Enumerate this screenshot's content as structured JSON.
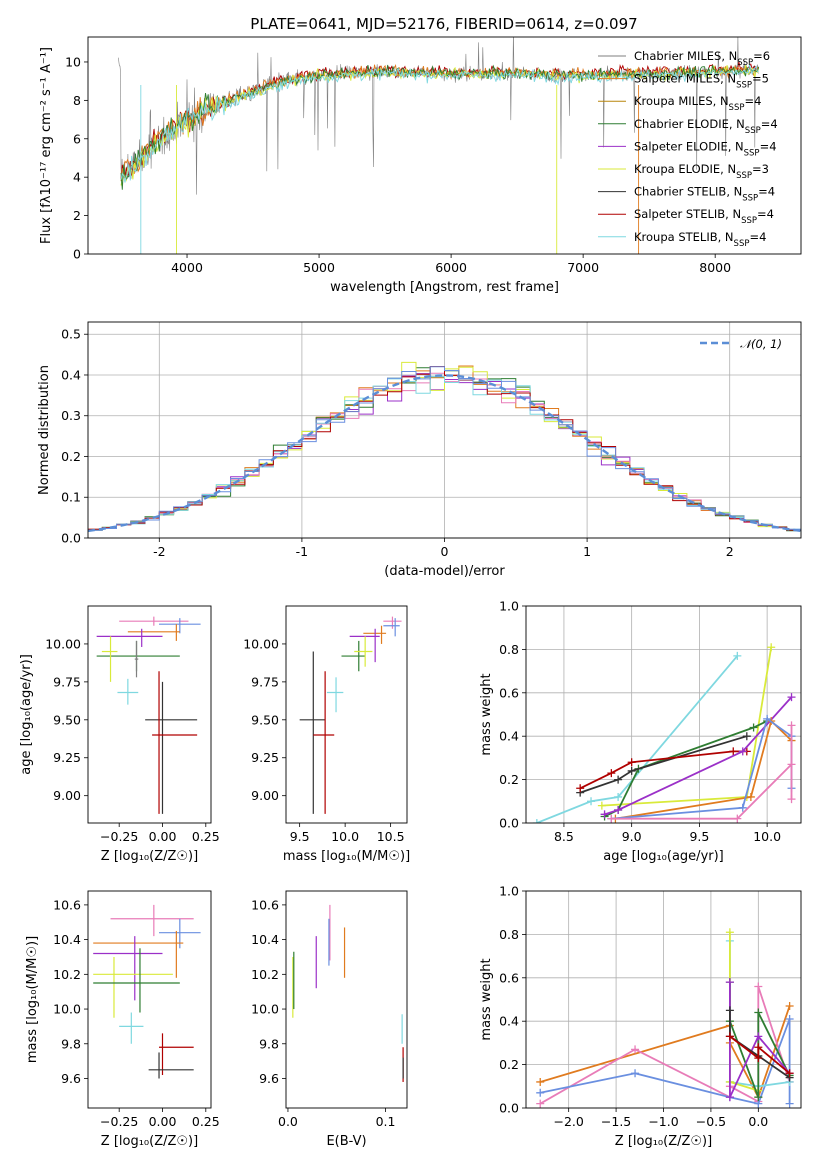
{
  "figure_title": "PLATE=0641, MJD=52176, FIBERID=0614, z=0.097",
  "colors": {
    "Chabrier MILES": "#6a8fe0",
    "Salpeter MILES": "#e07b1f",
    "Kroupa MILES": "#b8860b",
    "Chabrier ELODIE": "#2f7d32",
    "Salpeter ELODIE": "#9b30c8",
    "Kroupa ELODIE": "#d9ea3a",
    "Chabrier STELIB": "#333333",
    "Salpeter STELIB": "#b00000",
    "Kroupa STELIB": "#7fd8e0",
    "pink": "#e87cb8",
    "gray": "#7f7f7f",
    "sage": "#5f8f5f",
    "dashed": "#5b8ed6"
  },
  "chart_data": [
    {
      "type": "line",
      "id": "spectrum",
      "xlabel": "wavelength [Angstrom, rest frame]",
      "ylabel": "Flux [fλ10⁻¹⁷ erg cm⁻² s⁻¹ A⁻¹]",
      "xlim": [
        3250,
        8650
      ],
      "ylim": [
        0,
        11.3
      ],
      "xticks": [
        4000,
        5000,
        6000,
        7000,
        8000
      ],
      "yticks": [
        0,
        2,
        4,
        6,
        8,
        10
      ],
      "legend_position": "right",
      "legend": [
        {
          "base": "Chabrier MILES, N",
          "sub": "SSP",
          "tail": "=6"
        },
        {
          "base": "Salpeter MILES, N",
          "sub": "SSP",
          "tail": "=5"
        },
        {
          "base": "Kroupa MILES, N",
          "sub": "SSP",
          "tail": "=4"
        },
        {
          "base": "Chabrier ELODIE, N",
          "sub": "SSP",
          "tail": "=4"
        },
        {
          "base": "Salpeter ELODIE, N",
          "sub": "SSP",
          "tail": "=4"
        },
        {
          "base": "Kroupa ELODIE, N",
          "sub": "SSP",
          "tail": "=3"
        },
        {
          "base": "Chabrier STELIB, N",
          "sub": "SSP",
          "tail": "=4"
        },
        {
          "base": "Salpeter STELIB, N",
          "sub": "SSP",
          "tail": "=4"
        },
        {
          "base": "Kroupa STELIB, N",
          "sub": "SSP",
          "tail": "=4"
        }
      ],
      "continuum": [
        [
          3500,
          4.0
        ],
        [
          3600,
          4.6
        ],
        [
          3700,
          5.3
        ],
        [
          3800,
          6.0
        ],
        [
          3900,
          6.5
        ],
        [
          4000,
          7.0
        ],
        [
          4200,
          7.7
        ],
        [
          4400,
          8.2
        ],
        [
          4600,
          8.7
        ],
        [
          4800,
          9.1
        ],
        [
          5000,
          9.3
        ],
        [
          5200,
          9.4
        ],
        [
          5500,
          9.5
        ],
        [
          6000,
          9.4
        ],
        [
          6500,
          9.4
        ],
        [
          7000,
          9.3
        ],
        [
          7500,
          9.4
        ],
        [
          8000,
          9.5
        ],
        [
          8300,
          9.6
        ]
      ]
    },
    {
      "type": "line",
      "id": "residual-distribution",
      "xlabel": "(data-model)/error",
      "ylabel": "Normed distribution",
      "xlim": [
        -2.5,
        2.5
      ],
      "ylim": [
        0,
        0.53
      ],
      "xticks": [
        -2,
        -1,
        0,
        1,
        2
      ],
      "yticks": [
        0.0,
        0.1,
        0.2,
        0.3,
        0.4,
        0.5
      ],
      "legend": "𝒩(0, 1)",
      "legend_position": "upper right",
      "grid": true
    },
    {
      "type": "scatter",
      "id": "age-vs-Z",
      "xlabel": "Z [log₁₀(Z/Z☉)]",
      "ylabel": "age  [log₁₀(age/yr)]",
      "xlim": [
        -0.43,
        0.28
      ],
      "ylim": [
        8.82,
        10.25
      ],
      "xticks": [
        -0.25,
        0.0,
        0.25
      ],
      "yticks": [
        9.0,
        9.25,
        9.5,
        9.75,
        10.0
      ],
      "points": [
        {
          "c": "pink",
          "x": -0.05,
          "xe": [
            -0.25,
            0.15
          ],
          "y": 10.15,
          "ye": [
            10.12,
            10.18
          ]
        },
        {
          "c": "Chabrier MILES",
          "x": 0.1,
          "xe": [
            -0.02,
            0.22
          ],
          "y": 10.13,
          "ye": [
            10.07,
            10.17
          ]
        },
        {
          "c": "Salpeter MILES",
          "x": 0.08,
          "xe": [
            -0.2,
            0.1
          ],
          "y": 10.08,
          "ye": [
            10.02,
            10.13
          ]
        },
        {
          "c": "Salpeter ELODIE",
          "x": -0.12,
          "xe": [
            -0.38,
            0.0
          ],
          "y": 10.05,
          "ye": [
            9.98,
            10.1
          ]
        },
        {
          "c": "Chabrier ELODIE",
          "x": -0.15,
          "xe": [
            -0.38,
            0.1
          ],
          "y": 9.92,
          "ye": [
            9.82,
            10.02
          ]
        },
        {
          "c": "Kroupa ELODIE",
          "x": -0.3,
          "xe": [
            -0.35,
            -0.26
          ],
          "y": 9.95,
          "ye": [
            9.75,
            10.05
          ]
        },
        {
          "c": "gray",
          "x": -0.15,
          "xe": [
            -0.16,
            -0.14
          ],
          "y": 9.9,
          "ye": [
            9.78,
            10.02
          ]
        },
        {
          "c": "Kroupa STELIB",
          "x": -0.2,
          "xe": [
            -0.26,
            -0.14
          ],
          "y": 9.68,
          "ye": [
            9.6,
            9.77
          ]
        },
        {
          "c": "Chabrier STELIB",
          "x": 0.0,
          "xe": [
            -0.1,
            0.2
          ],
          "y": 9.5,
          "ye": [
            8.88,
            9.75
          ]
        },
        {
          "c": "Salpeter STELIB",
          "x": -0.02,
          "xe": [
            -0.06,
            0.2
          ],
          "y": 9.4,
          "ye": [
            8.88,
            9.82
          ]
        }
      ]
    },
    {
      "type": "scatter",
      "id": "age-vs-mass",
      "xlabel": "mass [log₁₀(M/M☉)]",
      "ylabel": "",
      "xlim": [
        9.35,
        10.68
      ],
      "ylim": [
        8.82,
        10.25
      ],
      "xticks": [
        9.5,
        10.0,
        10.5
      ],
      "yticks": [
        9.0,
        9.25,
        9.5,
        9.75,
        10.0
      ],
      "points": [
        {
          "c": "pink",
          "x": 10.52,
          "xe": [
            10.42,
            10.62
          ],
          "y": 10.15,
          "ye": [
            10.1,
            10.18
          ]
        },
        {
          "c": "Chabrier MILES",
          "x": 10.55,
          "xe": [
            10.42,
            10.6
          ],
          "y": 10.12,
          "ye": [
            10.05,
            10.17
          ]
        },
        {
          "c": "Salpeter MILES",
          "x": 10.4,
          "xe": [
            10.2,
            10.45
          ],
          "y": 10.07,
          "ye": [
            10.0,
            10.12
          ]
        },
        {
          "c": "Salpeter ELODIE",
          "x": 10.33,
          "xe": [
            10.05,
            10.38
          ],
          "y": 10.05,
          "ye": [
            9.88,
            10.1
          ]
        },
        {
          "c": "Chabrier ELODIE",
          "x": 10.15,
          "xe": [
            9.96,
            10.22
          ],
          "y": 9.92,
          "ye": [
            9.82,
            10.02
          ]
        },
        {
          "c": "Kroupa ELODIE",
          "x": 10.22,
          "xe": [
            10.1,
            10.3
          ],
          "y": 9.95,
          "ye": [
            9.85,
            10.05
          ]
        },
        {
          "c": "Kroupa STELIB",
          "x": 9.9,
          "xe": [
            9.8,
            9.98
          ],
          "y": 9.68,
          "ye": [
            9.55,
            9.78
          ]
        },
        {
          "c": "Chabrier STELIB",
          "x": 9.65,
          "xe": [
            9.5,
            9.78
          ],
          "y": 9.5,
          "ye": [
            8.88,
            9.95
          ]
        },
        {
          "c": "Salpeter STELIB",
          "x": 9.78,
          "xe": [
            9.65,
            9.88
          ],
          "y": 9.4,
          "ye": [
            8.88,
            9.82
          ]
        }
      ]
    },
    {
      "type": "line",
      "id": "mass-weight-vs-age",
      "xlabel": "age  [log₁₀(age/yr)]",
      "ylabel": "mass weight",
      "xlim": [
        8.22,
        10.25
      ],
      "ylim": [
        0.0,
        1.0
      ],
      "xticks": [
        8.5,
        9.0,
        9.5,
        10.0
      ],
      "yticks": [
        0.0,
        0.2,
        0.4,
        0.6,
        0.8,
        1.0
      ],
      "grid": true,
      "series": [
        {
          "c": "Kroupa STELIB",
          "x": [
            8.3,
            8.7,
            8.9,
            9.78
          ],
          "y": [
            0.0,
            0.1,
            0.12,
            0.77
          ]
        },
        {
          "c": "Kroupa ELODIE",
          "x": [
            8.78,
            9.85,
            10.03
          ],
          "y": [
            0.08,
            0.12,
            0.81
          ]
        },
        {
          "c": "Chabrier ELODIE",
          "x": [
            8.8,
            8.9,
            9.05,
            9.9,
            10.0
          ],
          "y": [
            0.03,
            0.06,
            0.25,
            0.44,
            0.47
          ]
        },
        {
          "c": "Chabrier STELIB",
          "x": [
            8.62,
            8.9,
            9.0,
            9.85
          ],
          "y": [
            0.14,
            0.2,
            0.24,
            0.4
          ]
        },
        {
          "c": "Salpeter STELIB",
          "x": [
            8.62,
            8.85,
            9.0,
            9.75,
            9.85
          ],
          "y": [
            0.16,
            0.23,
            0.28,
            0.33,
            0.33
          ]
        },
        {
          "c": "Salpeter ELODIE",
          "x": [
            8.8,
            8.9,
            9.82,
            10.18
          ],
          "y": [
            0.04,
            0.06,
            0.33,
            0.58
          ]
        },
        {
          "c": "Salpeter MILES",
          "x": [
            8.88,
            9.88,
            10.03,
            10.18
          ],
          "y": [
            0.02,
            0.12,
            0.47,
            0.38
          ]
        },
        {
          "c": "Chabrier MILES",
          "x": [
            8.85,
            9.82,
            10.0,
            10.18,
            10.18
          ],
          "y": [
            0.02,
            0.07,
            0.48,
            0.4,
            0.16
          ]
        },
        {
          "c": "pink",
          "x": [
            8.85,
            9.78,
            10.18,
            10.18,
            10.18
          ],
          "y": [
            0.02,
            0.02,
            0.27,
            0.45,
            0.11
          ]
        }
      ]
    },
    {
      "type": "scatter",
      "id": "mass-vs-Z",
      "xlabel": "Z [log₁₀(Z/Z☉)]",
      "ylabel": "mass [log₁₀(M/M☉)]",
      "xlim": [
        -0.43,
        0.28
      ],
      "ylim": [
        9.43,
        10.68
      ],
      "xticks": [
        -0.25,
        0.0,
        0.25
      ],
      "yticks": [
        9.6,
        9.8,
        10.0,
        10.2,
        10.4,
        10.6
      ],
      "points": [
        {
          "c": "pink",
          "x": -0.05,
          "xe": [
            -0.3,
            0.18
          ],
          "y": 10.52,
          "ye": [
            10.42,
            10.6
          ]
        },
        {
          "c": "Chabrier MILES",
          "x": 0.1,
          "xe": [
            -0.02,
            0.22
          ],
          "y": 10.44,
          "ye": [
            10.35,
            10.52
          ]
        },
        {
          "c": "Salpeter MILES",
          "x": 0.08,
          "xe": [
            -0.4,
            0.12
          ],
          "y": 10.38,
          "ye": [
            10.18,
            10.45
          ]
        },
        {
          "c": "Salpeter ELODIE",
          "x": -0.16,
          "xe": [
            -0.4,
            0.0
          ],
          "y": 10.32,
          "ye": [
            10.05,
            10.42
          ]
        },
        {
          "c": "Kroupa ELODIE",
          "x": -0.28,
          "xe": [
            -0.4,
            0.06
          ],
          "y": 10.2,
          "ye": [
            9.95,
            10.3
          ]
        },
        {
          "c": "Chabrier ELODIE",
          "x": -0.13,
          "xe": [
            -0.4,
            0.1
          ],
          "y": 10.15,
          "ye": [
            9.98,
            10.35
          ]
        },
        {
          "c": "Kroupa STELIB",
          "x": -0.18,
          "xe": [
            -0.25,
            -0.11
          ],
          "y": 9.9,
          "ye": [
            9.8,
            9.98
          ]
        },
        {
          "c": "Salpeter STELIB",
          "x": 0.0,
          "xe": [
            -0.02,
            0.18
          ],
          "y": 9.78,
          "ye": [
            9.62,
            9.86
          ]
        },
        {
          "c": "Chabrier STELIB",
          "x": -0.02,
          "xe": [
            -0.08,
            0.18
          ],
          "y": 9.65,
          "ye": [
            9.6,
            9.75
          ]
        }
      ]
    },
    {
      "type": "scatter",
      "id": "mass-vs-EBV",
      "xlabel": "E(B-V)",
      "ylabel": "",
      "xlim": [
        -0.002,
        0.122
      ],
      "ylim": [
        9.43,
        10.68
      ],
      "xticks": [
        0.0,
        0.1
      ],
      "yticks": [
        9.6,
        9.8,
        10.0,
        10.2,
        10.4,
        10.6
      ],
      "points": [
        {
          "c": "pink",
          "x": 0.043,
          "ye": [
            10.28,
            10.6
          ]
        },
        {
          "c": "Salpeter MILES",
          "x": 0.058,
          "ye": [
            10.18,
            10.47
          ]
        },
        {
          "c": "Chabrier MILES",
          "x": 0.042,
          "ye": [
            10.25,
            10.52
          ]
        },
        {
          "c": "Salpeter ELODIE",
          "x": 0.029,
          "ye": [
            10.12,
            10.42
          ]
        },
        {
          "c": "Kroupa ELODIE",
          "x": 0.005,
          "ye": [
            9.95,
            10.3
          ]
        },
        {
          "c": "Chabrier ELODIE",
          "x": 0.006,
          "ye": [
            10.0,
            10.33
          ]
        },
        {
          "c": "Kroupa STELIB",
          "x": 0.117,
          "ye": [
            9.8,
            9.97
          ]
        },
        {
          "c": "Salpeter STELIB",
          "x": 0.118,
          "ye": [
            9.58,
            9.78
          ]
        },
        {
          "c": "Chabrier STELIB",
          "x": 0.118,
          "ye": [
            9.6,
            9.72
          ]
        }
      ]
    },
    {
      "type": "line",
      "id": "mass-weight-vs-Z",
      "xlabel": "Z [log₁₀(Z/Z☉)]",
      "ylabel": "mass weight",
      "xlim": [
        -2.45,
        0.45
      ],
      "ylim": [
        0.0,
        1.0
      ],
      "xticks": [
        -2.0,
        -1.5,
        -1.0,
        -0.5,
        0.0
      ],
      "yticks": [
        0.0,
        0.2,
        0.4,
        0.6,
        0.8,
        1.0
      ],
      "grid": true,
      "series": [
        {
          "c": "Salpeter MILES",
          "x": [
            -2.3,
            -0.3,
            -0.3,
            0.0,
            0.33
          ],
          "y": [
            0.12,
            0.38,
            0.3,
            0.05,
            0.47
          ]
        },
        {
          "c": "pink",
          "x": [
            -2.3,
            -1.3,
            -0.3,
            -0.3,
            0.0,
            0.0,
            0.33
          ],
          "y": [
            0.02,
            0.27,
            0.05,
            0.1,
            0.03,
            0.56,
            0.12
          ]
        },
        {
          "c": "Chabrier MILES",
          "x": [
            -2.3,
            -1.3,
            -0.3,
            0.0,
            0.33,
            0.33
          ],
          "y": [
            0.07,
            0.16,
            0.05,
            0.02,
            0.41,
            0.02
          ]
        },
        {
          "c": "Kroupa STELIB",
          "x": [
            -0.3,
            -0.3,
            0.0,
            0.33
          ],
          "y": [
            0.77,
            0.12,
            0.1,
            0.12
          ]
        },
        {
          "c": "Kroupa ELODIE",
          "x": [
            -0.3,
            -0.3,
            0.0
          ],
          "y": [
            0.81,
            0.12,
            0.08
          ]
        },
        {
          "c": "Chabrier ELODIE",
          "x": [
            -0.3,
            -0.3,
            0.0,
            0.0,
            0.33
          ],
          "y": [
            0.58,
            0.4,
            0.05,
            0.44,
            0.15
          ]
        },
        {
          "c": "Salpeter ELODIE",
          "x": [
            -0.3,
            -0.3,
            0.0,
            0.33
          ],
          "y": [
            0.58,
            0.05,
            0.33,
            0.16
          ]
        },
        {
          "c": "Chabrier STELIB",
          "x": [
            -0.3,
            -0.3,
            0.0,
            0.33
          ],
          "y": [
            0.45,
            0.33,
            0.24,
            0.14
          ]
        },
        {
          "c": "Salpeter STELIB",
          "x": [
            -0.3,
            0.0,
            0.0,
            0.33
          ],
          "y": [
            0.33,
            0.23,
            0.28,
            0.16
          ]
        }
      ]
    }
  ]
}
